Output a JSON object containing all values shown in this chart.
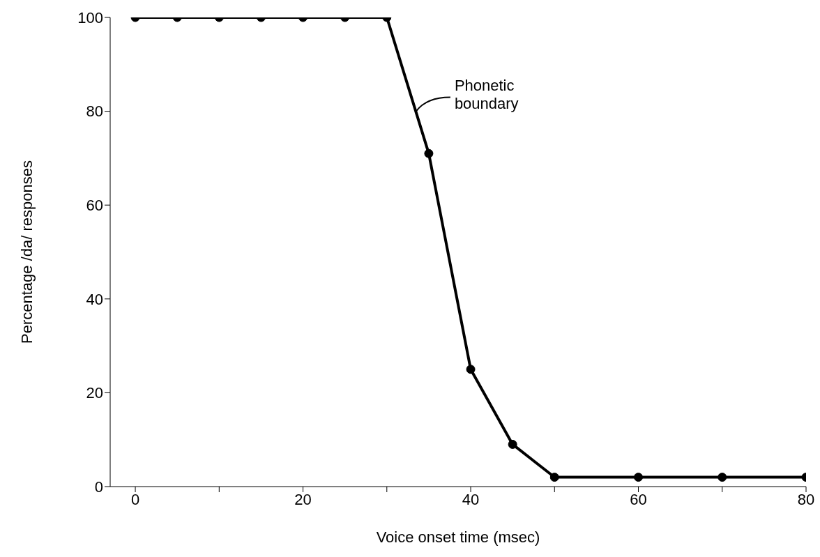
{
  "chart_data": {
    "type": "line",
    "xlabel": "Voice onset time (msec)",
    "ylabel": "Percentage /da/ responses",
    "x": [
      0,
      5,
      10,
      15,
      20,
      25,
      30,
      35,
      40,
      45,
      50,
      60,
      70,
      80
    ],
    "series": [
      {
        "color": "#000000",
        "values": [
          100,
          100,
          100,
          100,
          100,
          100,
          100,
          71,
          25,
          9,
          2,
          2,
          2,
          2
        ]
      }
    ],
    "xlim": [
      -3,
      80
    ],
    "xticks": [
      0,
      {
        "value": 10,
        "label": null
      },
      20,
      {
        "value": 30,
        "label": null
      },
      40,
      {
        "value": 50,
        "label": null
      },
      60,
      {
        "value": 70,
        "label": null
      },
      80
    ],
    "ylim": [
      0,
      100
    ],
    "yticks": [
      0,
      20,
      40,
      60,
      80,
      100
    ],
    "grid": false,
    "legend": false,
    "marker": "circle",
    "line_style": "solid",
    "annotations": [
      {
        "text": "Phonetic\nboundary",
        "x": 33.5,
        "y": 80
      }
    ]
  }
}
